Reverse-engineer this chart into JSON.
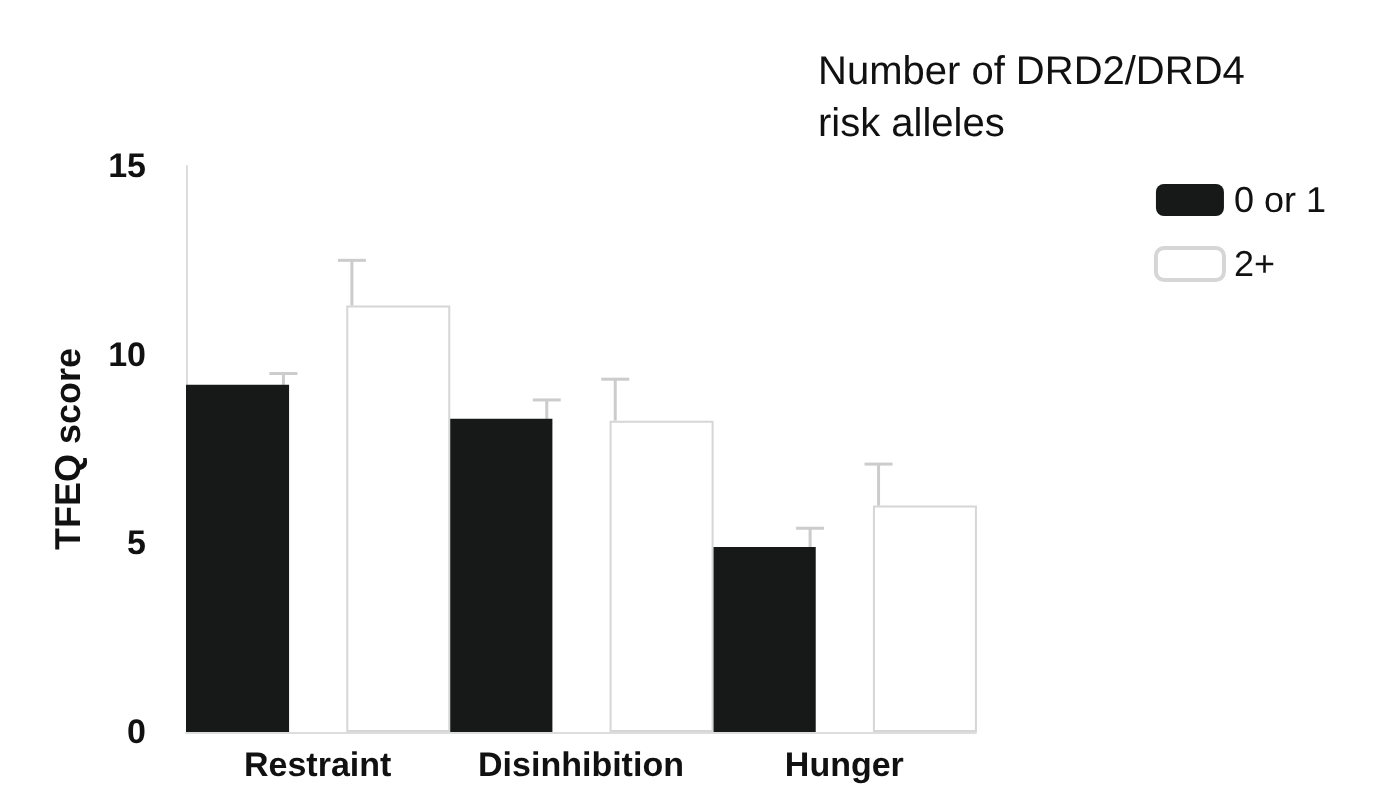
{
  "chart_data": {
    "type": "bar",
    "ylabel": "TFEQ score",
    "legend_title": "Number of DRD2/DRD4 risk alleles",
    "categories": [
      "Restraint",
      "Disinhibition",
      "Hunger"
    ],
    "series": [
      {
        "name": "0 or 1",
        "color": "#161918",
        "values": [
          9.2,
          8.3,
          4.9
        ],
        "errors": [
          0.3,
          0.5,
          0.5
        ]
      },
      {
        "name": "2+",
        "color": "#ffffff",
        "values": [
          11.3,
          8.25,
          6.0
        ],
        "errors": [
          1.2,
          1.1,
          1.1
        ]
      }
    ],
    "ylim": [
      0,
      15
    ],
    "yticks": [
      0,
      5,
      10,
      15
    ],
    "grid": false,
    "legend": "top right"
  }
}
